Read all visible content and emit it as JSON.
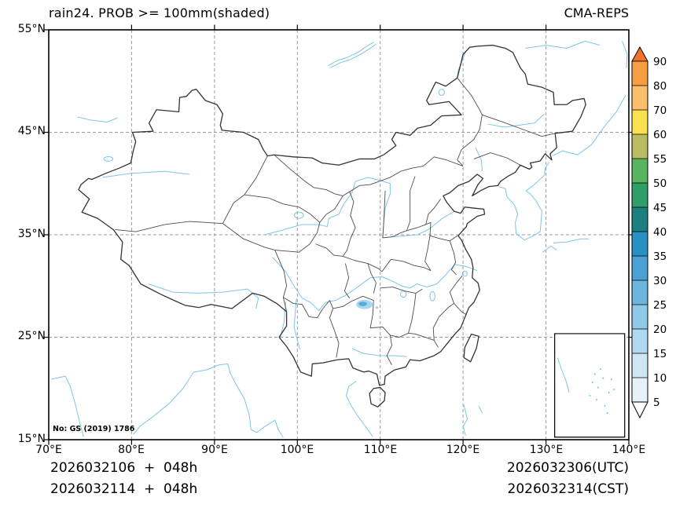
{
  "header": {
    "title": "rain24. PROB >= 100mm(shaded)",
    "model_label": "CMA-REPS"
  },
  "map": {
    "x_tick_labels": [
      "70°E",
      "80°E",
      "90°E",
      "100°E",
      "110°E",
      "120°E",
      "130°E",
      "140°E"
    ],
    "y_tick_labels": [
      "55°N",
      "45°N",
      "35°N",
      "25°N",
      "15°N"
    ],
    "license_note": "No: GS (2019) 1786",
    "extent": {
      "lon_min": 70,
      "lon_max": 140,
      "lat_min": 15,
      "lat_max": 55
    }
  },
  "colorbar": {
    "tick_labels": [
      "90",
      "80",
      "70",
      "60",
      "55",
      "50",
      "45",
      "40",
      "35",
      "30",
      "25",
      "20",
      "15",
      "10",
      "5"
    ],
    "segment_colors_top_to_bottom": [
      "#f59e42",
      "#fbbf6b",
      "#f7e14e",
      "#b9bc62",
      "#59b45f",
      "#2f9e67",
      "#1e7f81",
      "#2a8fc2",
      "#4aa0d2",
      "#6cb6de",
      "#8fc9e8",
      "#b0d9ef",
      "#cfe7f4",
      "#e7f2f8"
    ],
    "over_color": "#f0722b",
    "under_color": "#ffffff"
  },
  "footer": {
    "init_line_utc": "2026032106  +  048h",
    "init_line_cst": "2026032114  +  048h",
    "valid_line_utc": "2026032306(UTC)",
    "valid_line_cst": "2026032314(CST)"
  },
  "colors": {
    "country_line": "#333333",
    "province_line": "#4d4d4d",
    "river_line": "#7fc4e8",
    "grid_line": "#9a9a9a",
    "shade_light": "#a9d7ee",
    "shade_mid": "#57abd9"
  },
  "chart_data": {
    "type": "map",
    "title": "rain24. PROB >= 100mm(shaded)",
    "model": "CMA-REPS",
    "variable": "Probability of 24h rainfall >= 100mm (%)",
    "extent": {
      "lon": [
        70,
        140
      ],
      "lat": [
        15,
        55
      ]
    },
    "colorbar_levels": [
      5,
      10,
      15,
      20,
      25,
      30,
      35,
      40,
      45,
      50,
      55,
      60,
      70,
      80,
      90
    ],
    "shaded_features": [
      {
        "description": "Small shaded area of low probability (~5-25%) over southwest China",
        "lon": 108.0,
        "lat": 28.2,
        "max_level": 25
      }
    ],
    "init_time_utc": "2026032106",
    "lead_hours": "048h",
    "valid_time_utc": "2026032306",
    "init_time_cst": "2026032114",
    "valid_time_cst": "2026032314",
    "license_note": "No: GS (2019) 1786"
  }
}
